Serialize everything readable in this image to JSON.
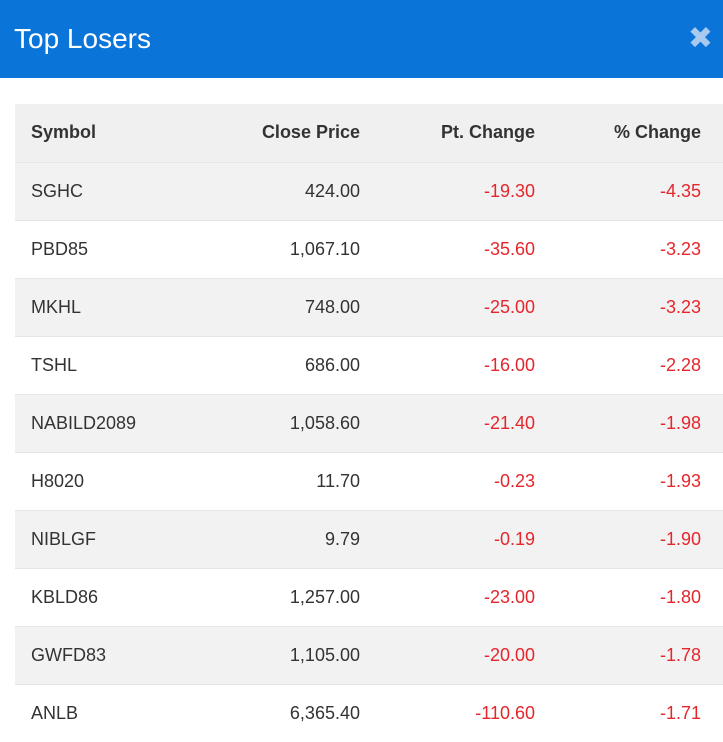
{
  "header": {
    "title": "Top Losers",
    "close_icon": "close-icon"
  },
  "table": {
    "columns": [
      "Symbol",
      "Close Price",
      "Pt. Change",
      "% Change"
    ],
    "rows": [
      [
        "SGHC",
        "424.00",
        "-19.30",
        "-4.35"
      ],
      [
        "PBD85",
        "1,067.10",
        "-35.60",
        "-3.23"
      ],
      [
        "MKHL",
        "748.00",
        "-25.00",
        "-3.23"
      ],
      [
        "TSHL",
        "686.00",
        "-16.00",
        "-2.28"
      ],
      [
        "NABILD2089",
        "1,058.60",
        "-21.40",
        "-1.98"
      ],
      [
        "H8020",
        "11.70",
        "-0.23",
        "-1.93"
      ],
      [
        "NIBLGF",
        "9.79",
        "-0.19",
        "-1.90"
      ],
      [
        "KBLD86",
        "1,257.00",
        "-23.00",
        "-1.80"
      ],
      [
        "GWFD83",
        "1,105.00",
        "-20.00",
        "-1.78"
      ],
      [
        "ANLB",
        "6,365.40",
        "-110.60",
        "-1.71"
      ]
    ]
  },
  "colors": {
    "header_bg": "#0b74d8",
    "negative": "#e5262c"
  }
}
